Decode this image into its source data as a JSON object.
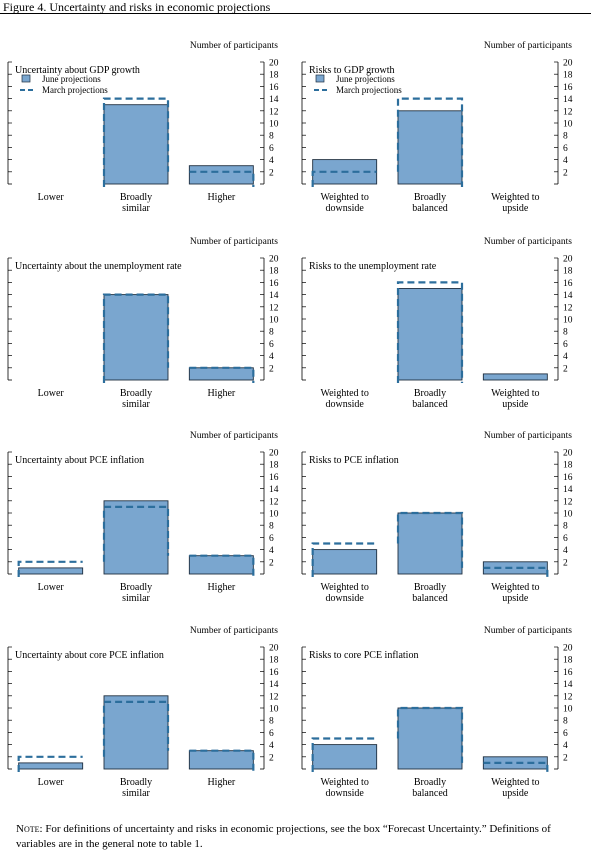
{
  "figure": {
    "title": "Figure 4. Uncertainty and risks in economic projections",
    "note_label": "Note:",
    "note_text": " For definitions of uncertainty and risks in economic projections, see the box “Forecast Uncertainty.” Definitions of variables are in the general note to table 1."
  },
  "colors": {
    "june_fill": "#7AA6CF",
    "june_stroke": "#1F2F40",
    "march_line": "#2C6E9C"
  },
  "chart_data": [
    {
      "type": "bar",
      "title": "Uncertainty about GDP growth",
      "ylabel": "Number of participants",
      "ylim": [
        0,
        20
      ],
      "yticks": [
        "2",
        "4",
        "6",
        "8",
        "10",
        "12",
        "14",
        "16",
        "18",
        "20"
      ],
      "categories": [
        "Lower",
        "Broadly similar",
        "Higher"
      ],
      "legend": [
        "June projections",
        "March projections"
      ],
      "series": [
        {
          "name": "June projections",
          "style": "bars",
          "values": [
            0,
            13,
            3
          ]
        },
        {
          "name": "March projections",
          "style": "dashed-step",
          "values": [
            0,
            14,
            2
          ]
        }
      ]
    },
    {
      "type": "bar",
      "title": "Risks to GDP growth",
      "ylabel": "Number of participants",
      "ylim": [
        0,
        20
      ],
      "yticks": [
        "2",
        "4",
        "6",
        "8",
        "10",
        "12",
        "14",
        "16",
        "18",
        "20"
      ],
      "categories": [
        "Weighted to downside",
        "Broadly balanced",
        "Weighted to upside"
      ],
      "legend": [
        "June projections",
        "March projections"
      ],
      "series": [
        {
          "name": "June projections",
          "style": "bars",
          "values": [
            4,
            12,
            0
          ]
        },
        {
          "name": "March projections",
          "style": "dashed-step",
          "values": [
            2,
            14,
            0
          ]
        }
      ]
    },
    {
      "type": "bar",
      "title": "Uncertainty about the unemployment rate",
      "ylabel": "Number of participants",
      "ylim": [
        0,
        20
      ],
      "yticks": [
        "2",
        "4",
        "6",
        "8",
        "10",
        "12",
        "14",
        "16",
        "18",
        "20"
      ],
      "categories": [
        "Lower",
        "Broadly similar",
        "Higher"
      ],
      "legend": [],
      "series": [
        {
          "values": [
            0,
            14,
            2
          ]
        },
        {
          "values": [
            0,
            14,
            2
          ]
        }
      ]
    },
    {
      "type": "bar",
      "title": "Risks to the unemployment rate",
      "ylabel": "Number of participants",
      "ylim": [
        0,
        20
      ],
      "yticks": [
        "2",
        "4",
        "6",
        "8",
        "10",
        "12",
        "14",
        "16",
        "18",
        "20"
      ],
      "categories": [
        "Weighted to downside",
        "Broadly balanced",
        "Weighted to upside"
      ],
      "legend": [],
      "series": [
        {
          "values": [
            0,
            15,
            1
          ]
        },
        {
          "values": [
            0,
            16,
            0
          ]
        }
      ]
    },
    {
      "type": "bar",
      "title": "Uncertainty about PCE inflation",
      "ylabel": "Number of participants",
      "ylim": [
        0,
        20
      ],
      "yticks": [
        "2",
        "4",
        "6",
        "8",
        "10",
        "12",
        "14",
        "16",
        "18",
        "20"
      ],
      "categories": [
        "Lower",
        "Broadly similar",
        "Higher"
      ],
      "legend": [],
      "series": [
        {
          "values": [
            1,
            12,
            3
          ]
        },
        {
          "values": [
            2,
            11,
            3
          ]
        }
      ]
    },
    {
      "type": "bar",
      "title": "Risks to PCE inflation",
      "ylabel": "Number of participants",
      "ylim": [
        0,
        20
      ],
      "yticks": [
        "2",
        "4",
        "6",
        "8",
        "10",
        "12",
        "14",
        "16",
        "18",
        "20"
      ],
      "categories": [
        "Weighted to downside",
        "Broadly balanced",
        "Weighted to upside"
      ],
      "legend": [],
      "series": [
        {
          "values": [
            4,
            10,
            2
          ]
        },
        {
          "values": [
            5,
            10,
            1
          ]
        }
      ]
    },
    {
      "type": "bar",
      "title": "Uncertainty about core PCE inflation",
      "ylabel": "Number of participants",
      "ylim": [
        0,
        20
      ],
      "yticks": [
        "2",
        "4",
        "6",
        "8",
        "10",
        "12",
        "14",
        "16",
        "18",
        "20"
      ],
      "categories": [
        "Lower",
        "Broadly similar",
        "Higher"
      ],
      "legend": [],
      "series": [
        {
          "values": [
            1,
            12,
            3
          ]
        },
        {
          "values": [
            2,
            11,
            3
          ]
        }
      ]
    },
    {
      "type": "bar",
      "title": "Risks to core PCE inflation",
      "ylabel": "Number of participants",
      "ylim": [
        0,
        20
      ],
      "yticks": [
        "2",
        "4",
        "6",
        "8",
        "10",
        "12",
        "14",
        "16",
        "18",
        "20"
      ],
      "categories": [
        "Weighted to downside",
        "Broadly balanced",
        "Weighted to upside"
      ],
      "legend": [],
      "series": [
        {
          "values": [
            4,
            10,
            2
          ]
        },
        {
          "values": [
            5,
            10,
            1
          ]
        }
      ]
    }
  ]
}
